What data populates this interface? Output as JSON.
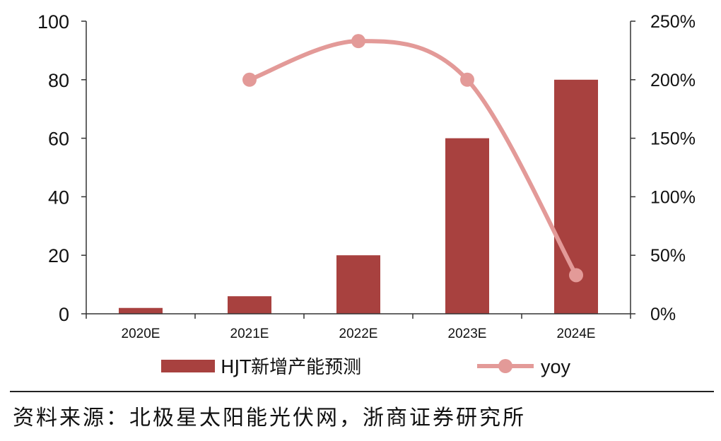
{
  "chart_data": {
    "type": "bar",
    "categories": [
      "2020E",
      "2021E",
      "2022E",
      "2023E",
      "2024E"
    ],
    "series": [
      {
        "name": "HJT新增产能预测",
        "type": "bar",
        "axis": "left",
        "values": [
          2,
          6,
          20,
          60,
          80
        ]
      },
      {
        "name": "yoy",
        "type": "line",
        "axis": "right",
        "values": [
          null,
          200,
          233,
          200,
          33
        ]
      }
    ],
    "y_left": {
      "ylim": [
        0,
        100
      ],
      "ticks": [
        "0",
        "20",
        "40",
        "60",
        "80",
        "100"
      ]
    },
    "y_right": {
      "ylim": [
        0,
        250
      ],
      "ticks": [
        "0%",
        "50%",
        "100%",
        "150%",
        "200%",
        "250%"
      ]
    },
    "legend": "bottom",
    "grid": false
  },
  "colors": {
    "bar": "#a8413f",
    "line": "#e39a98",
    "axis": "#333333"
  },
  "source": "资料来源：北极星太阳能光伏网，浙商证券研究所"
}
